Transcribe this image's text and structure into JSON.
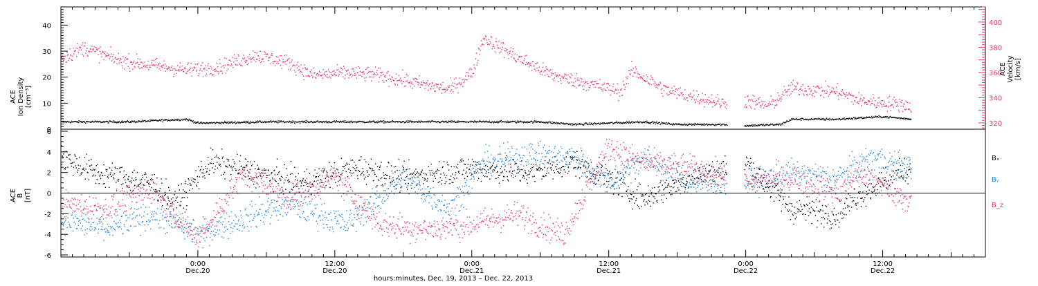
{
  "colors": {
    "black": "#000000",
    "pink": "#e8336b",
    "blue": "#1f86e0"
  },
  "x_axis": {
    "title": "hours:minutes, Dec. 19, 2013 – Dec. 22, 2013",
    "range": [
      "2013-12-19T12:00",
      "2013-12-22T21:00"
    ],
    "ticks": [
      {
        "t": "2013-12-20T00:00",
        "time": "0:00",
        "date": "Dec.20"
      },
      {
        "t": "2013-12-20T12:00",
        "time": "12:00",
        "date": "Dec.20"
      },
      {
        "t": "2013-12-21T00:00",
        "time": "0:00",
        "date": "Dec.21"
      },
      {
        "t": "2013-12-21T12:00",
        "time": "12:00",
        "date": "Dec.21"
      },
      {
        "t": "2013-12-22T00:00",
        "time": "0:00",
        "date": "Dec.22"
      },
      {
        "t": "2013-12-22T12:00",
        "time": "12:00",
        "date": "Dec.22"
      }
    ]
  },
  "chart_data": [
    {
      "type": "scatter",
      "ylabel_left": [
        "ACE",
        "Ion Density",
        "[cm⁻³]"
      ],
      "ylabel_right": [
        "ACE",
        "Velocity",
        "[km/s]"
      ],
      "y_left": {
        "ylim": [
          0,
          47
        ],
        "ticks": [
          "0",
          "10",
          "20",
          "30",
          "40"
        ]
      },
      "y_right": {
        "ylim": [
          315,
          412
        ],
        "ticks": [
          "320",
          "340",
          "360",
          "380",
          "400"
        ]
      },
      "data_gap": [
        "2013-12-21T22:20",
        "2013-12-21T23:50"
      ],
      "series": [
        {
          "axis": "left",
          "color": "black",
          "points": [
            [
              "2013-12-19T12:00",
              3
            ],
            [
              "2013-12-19T18:00",
              3
            ],
            [
              "2013-12-19T23:00",
              4
            ],
            [
              "2013-12-20T00:00",
              2.5
            ],
            [
              "2013-12-20T06:00",
              3
            ],
            [
              "2013-12-20T12:00",
              3
            ],
            [
              "2013-12-20T18:00",
              3
            ],
            [
              "2013-12-21T00:00",
              3
            ],
            [
              "2013-12-21T06:00",
              3
            ],
            [
              "2013-12-21T09:00",
              2
            ],
            [
              "2013-12-21T12:00",
              2.5
            ],
            [
              "2013-12-21T15:00",
              3
            ],
            [
              "2013-12-21T18:00",
              2
            ],
            [
              "2013-12-21T22:00",
              2
            ],
            [
              "2013-12-22T00:00",
              1.5
            ],
            [
              "2013-12-22T03:00",
              2
            ],
            [
              "2013-12-22T04:00",
              4
            ],
            [
              "2013-12-22T08:00",
              4
            ],
            [
              "2013-12-22T12:00",
              5
            ],
            [
              "2013-12-22T14:30",
              4
            ]
          ]
        },
        {
          "axis": "right",
          "color": "pink",
          "points": [
            [
              "2013-12-19T12:00",
              372
            ],
            [
              "2013-12-19T14:00",
              380
            ],
            [
              "2013-12-19T17:00",
              370
            ],
            [
              "2013-12-19T20:00",
              366
            ],
            [
              "2013-12-19T23:00",
              362
            ],
            [
              "2013-12-20T02:00",
              365
            ],
            [
              "2013-12-20T05:00",
              374
            ],
            [
              "2013-12-20T08:00",
              368
            ],
            [
              "2013-12-20T10:00",
              358
            ],
            [
              "2013-12-20T13:00",
              360
            ],
            [
              "2013-12-20T16:00",
              358
            ],
            [
              "2013-12-20T19:00",
              352
            ],
            [
              "2013-12-20T22:00",
              347
            ],
            [
              "2013-12-21T00:00",
              360
            ],
            [
              "2013-12-21T01:00",
              388
            ],
            [
              "2013-12-21T04:00",
              372
            ],
            [
              "2013-12-21T07:00",
              358
            ],
            [
              "2013-12-21T10:00",
              352
            ],
            [
              "2013-12-21T13:00",
              345
            ],
            [
              "2013-12-21T14:00",
              362
            ],
            [
              "2013-12-21T17:00",
              346
            ],
            [
              "2013-12-21T20:00",
              340
            ],
            [
              "2013-12-21T22:00",
              336
            ],
            [
              "2013-12-22T00:00",
              338
            ],
            [
              "2013-12-22T02:00",
              334
            ],
            [
              "2013-12-22T04:00",
              348
            ],
            [
              "2013-12-22T08:00",
              345
            ],
            [
              "2013-12-22T10:00",
              338
            ],
            [
              "2013-12-22T14:30",
              334
            ]
          ]
        }
      ]
    },
    {
      "type": "scatter",
      "ylabel": [
        "ACE",
        "B",
        "[nT]"
      ],
      "ylim": [
        -6.2,
        6.2
      ],
      "y_ticks": [
        "-6",
        "-4",
        "-2",
        "0",
        "2",
        "4",
        "6"
      ],
      "series": [
        {
          "name": "Bₓ",
          "color": "black",
          "points": [
            [
              "2013-12-19T12:00",
              3.5
            ],
            [
              "2013-12-19T15:00",
              2
            ],
            [
              "2013-12-19T20:00",
              1
            ],
            [
              "2013-12-19T22:00",
              -1
            ],
            [
              "2013-12-20T01:00",
              3
            ],
            [
              "2013-12-20T05:00",
              2
            ],
            [
              "2013-12-20T09:00",
              1
            ],
            [
              "2013-12-20T14:00",
              2.5
            ],
            [
              "2013-12-20T18:00",
              1.5
            ],
            [
              "2013-12-21T00:00",
              2.5
            ],
            [
              "2013-12-21T05:00",
              2
            ],
            [
              "2013-12-21T09:00",
              3
            ],
            [
              "2013-12-21T12:00",
              1.5
            ],
            [
              "2013-12-21T15:00",
              -0.5
            ],
            [
              "2013-12-21T19:00",
              1.5
            ],
            [
              "2013-12-22T00:00",
              3
            ],
            [
              "2013-12-22T04:00",
              -1.5
            ],
            [
              "2013-12-22T08:00",
              -2
            ],
            [
              "2013-12-22T10:00",
              0
            ],
            [
              "2013-12-22T14:30",
              2.5
            ]
          ]
        },
        {
          "name": "Bᵧ",
          "color": "blue",
          "points": [
            [
              "2013-12-19T12:00",
              -2.5
            ],
            [
              "2013-12-19T16:00",
              -3.5
            ],
            [
              "2013-12-19T20:00",
              -2
            ],
            [
              "2013-12-20T00:00",
              -3.8
            ],
            [
              "2013-12-20T04:00",
              -2.5
            ],
            [
              "2013-12-20T08:00",
              -1
            ],
            [
              "2013-12-20T13:00",
              -3
            ],
            [
              "2013-12-20T18:00",
              1.5
            ],
            [
              "2013-12-20T22:00",
              -1.5
            ],
            [
              "2013-12-21T01:00",
              3
            ],
            [
              "2013-12-21T05:00",
              3.8
            ],
            [
              "2013-12-21T09:00",
              3.5
            ],
            [
              "2013-12-21T12:00",
              1
            ],
            [
              "2013-12-21T15:00",
              3.5
            ],
            [
              "2013-12-21T19:00",
              1
            ],
            [
              "2013-12-22T00:00",
              1
            ],
            [
              "2013-12-22T04:00",
              2
            ],
            [
              "2013-12-22T08:00",
              1.5
            ],
            [
              "2013-12-22T11:00",
              3.5
            ],
            [
              "2013-12-22T14:30",
              2.5
            ]
          ]
        },
        {
          "name": "B_z",
          "color": "pink",
          "points": [
            [
              "2013-12-19T12:00",
              -1
            ],
            [
              "2013-12-19T16:00",
              -1.5
            ],
            [
              "2013-12-19T20:00",
              0.5
            ],
            [
              "2013-12-20T00:00",
              -4.5
            ],
            [
              "2013-12-20T04:00",
              2
            ],
            [
              "2013-12-20T08:00",
              -0.5
            ],
            [
              "2013-12-20T12:00",
              1.5
            ],
            [
              "2013-12-20T16:00",
              -3
            ],
            [
              "2013-12-20T20:00",
              -3.5
            ],
            [
              "2013-12-21T00:00",
              -3
            ],
            [
              "2013-12-21T04:00",
              -2
            ],
            [
              "2013-12-21T08:00",
              -4
            ],
            [
              "2013-12-21T12:00",
              4.5
            ],
            [
              "2013-12-21T15:00",
              3
            ],
            [
              "2013-12-21T19:00",
              2.5
            ],
            [
              "2013-12-22T00:00",
              1
            ],
            [
              "2013-12-22T04:00",
              1.5
            ],
            [
              "2013-12-22T08:00",
              0
            ],
            [
              "2013-12-22T10:00",
              2
            ],
            [
              "2013-12-22T14:30",
              -0.8
            ]
          ]
        }
      ]
    }
  ]
}
